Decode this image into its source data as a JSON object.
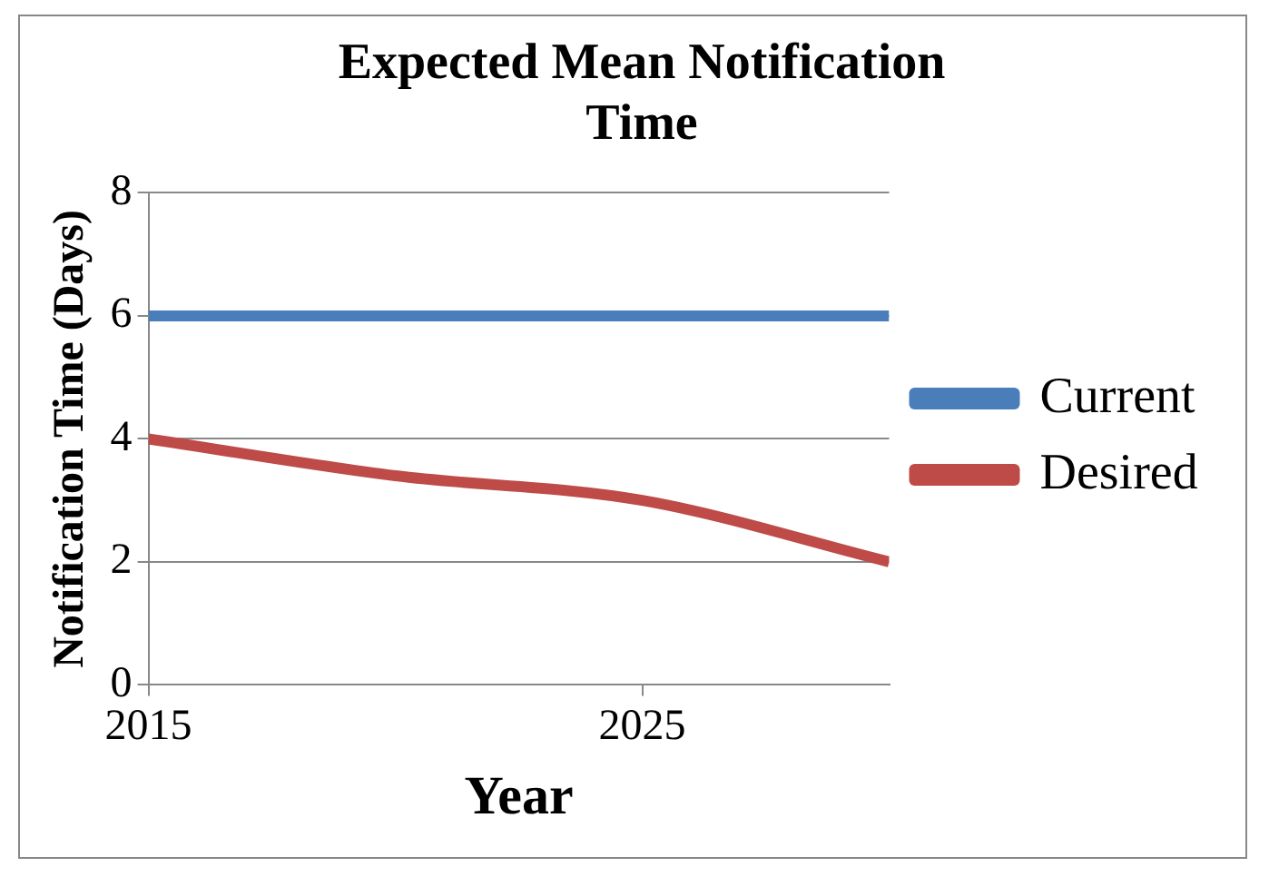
{
  "chart_data": {
    "type": "line",
    "title": "Expected Mean Notification Time",
    "xlabel": "Year",
    "ylabel": "Notification Time (Days)",
    "x": [
      2015,
      2020,
      2025,
      2030
    ],
    "series": [
      {
        "name": "Current",
        "color": "#4a7ebb",
        "values": [
          6,
          6,
          6,
          6
        ]
      },
      {
        "name": "Desired",
        "color": "#be4b48",
        "values": [
          4,
          3.4,
          3,
          2
        ]
      }
    ],
    "xlim": [
      2015,
      2030
    ],
    "xticks": [
      2015,
      2025
    ],
    "ylim": [
      0,
      8
    ],
    "yticks": [
      0,
      2,
      4,
      6,
      8
    ],
    "grid": "y",
    "legend": "right",
    "marker": "none",
    "line_style": "solid"
  }
}
